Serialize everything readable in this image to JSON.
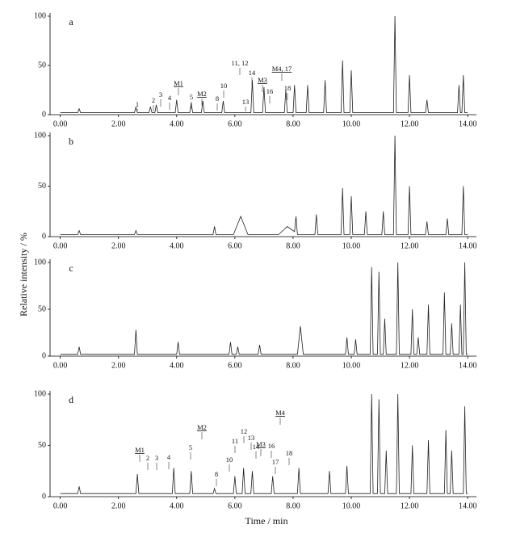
{
  "y_label": "Relative intensity / %",
  "x_label": "Time / min",
  "chart_data": [
    {
      "type": "line",
      "label": "a",
      "x": [
        0,
        0.6,
        0.65,
        0.7,
        2.55,
        2.6,
        2.65,
        3.05,
        3.1,
        3.15,
        3.25,
        3.3,
        3.35,
        3.95,
        4,
        4.05,
        4.45,
        4.5,
        4.55,
        4.85,
        4.9,
        4.95,
        5.55,
        5.6,
        5.65,
        6.55,
        6.6,
        6.65,
        6.95,
        7,
        7.05,
        7.7,
        7.75,
        7.8,
        8,
        8.05,
        8.1,
        8.45,
        8.5,
        8.55,
        9.05,
        9.1,
        9.15,
        9.65,
        9.7,
        9.75,
        9.95,
        10,
        10.05,
        11.45,
        11.5,
        11.55,
        11.95,
        12,
        12.05,
        12.55,
        12.6,
        12.65,
        13.65,
        13.7,
        13.75,
        13.8,
        13.85,
        13.9,
        14
      ],
      "values": [
        2,
        2,
        6,
        2,
        2,
        8,
        2,
        2,
        8,
        2,
        2,
        10,
        2,
        2,
        15,
        2,
        2,
        12,
        2,
        2,
        14,
        2,
        2,
        14,
        2,
        2,
        35,
        2,
        2,
        28,
        2,
        2,
        25,
        2,
        2,
        30,
        2,
        2,
        30,
        2,
        2,
        35,
        2,
        2,
        55,
        2,
        2,
        45,
        2,
        2,
        100,
        2,
        2,
        40,
        2,
        2,
        15,
        2,
        2,
        30,
        2,
        2,
        40,
        2,
        2
      ],
      "xlim": [
        -0.35,
        14.3
      ],
      "ylim": [
        0,
        100
      ],
      "yticks": [
        0,
        50,
        100
      ],
      "xticks": [
        {
          "value": 0,
          "label": "0.00"
        },
        {
          "value": 2,
          "label": "2.00"
        },
        {
          "value": 4,
          "label": "4.00"
        },
        {
          "value": 6,
          "label": "6.00"
        },
        {
          "value": 8,
          "label": "8.00"
        },
        {
          "value": 10,
          "label": "10.00"
        },
        {
          "value": 12,
          "label": "12.00"
        },
        {
          "value": 14,
          "label": "14.00"
        }
      ],
      "annotations": [
        "1",
        "2",
        "3",
        "4",
        "M1",
        "5",
        "M2",
        "8",
        "10",
        "11, 12",
        "13",
        "14",
        "M3",
        "16",
        "M4, 17",
        "18"
      ]
    },
    {
      "type": "line",
      "label": "b",
      "x": [
        0,
        0.6,
        0.65,
        0.7,
        2.55,
        2.6,
        2.65,
        5.25,
        5.3,
        5.35,
        5.95,
        6.2,
        6.45,
        7.5,
        7.8,
        8.05,
        8.1,
        8.15,
        8.75,
        8.8,
        8.85,
        9.65,
        9.7,
        9.75,
        9.95,
        10,
        10.05,
        10.45,
        10.5,
        10.55,
        11.05,
        11.1,
        11.15,
        11.45,
        11.5,
        11.55,
        11.95,
        12,
        12.05,
        12.55,
        12.6,
        12.65,
        13.25,
        13.3,
        13.35,
        13.8,
        13.85,
        13.9,
        14
      ],
      "values": [
        2,
        2,
        6,
        2,
        2,
        6,
        2,
        2,
        10,
        2,
        2,
        20,
        2,
        2,
        10,
        5,
        20,
        2,
        2,
        22,
        2,
        2,
        48,
        2,
        2,
        40,
        2,
        2,
        25,
        2,
        2,
        25,
        2,
        2,
        100,
        2,
        2,
        50,
        2,
        2,
        15,
        2,
        2,
        18,
        2,
        2,
        50,
        2,
        2
      ],
      "xlim": [
        -0.35,
        14.3
      ],
      "ylim": [
        0,
        100
      ],
      "yticks": [
        0,
        50,
        100
      ],
      "xticks": [
        {
          "value": 0,
          "label": "0.00"
        },
        {
          "value": 2,
          "label": "2.00"
        },
        {
          "value": 4,
          "label": "4.00"
        },
        {
          "value": 6,
          "label": "6.00"
        },
        {
          "value": 8,
          "label": "8.00"
        },
        {
          "value": 10,
          "label": "10.00"
        },
        {
          "value": 12,
          "label": "12.00"
        },
        {
          "value": 14,
          "label": "14.00"
        }
      ],
      "annotations": []
    },
    {
      "type": "line",
      "label": "c",
      "x": [
        0,
        0.6,
        0.65,
        0.7,
        2.55,
        2.6,
        2.65,
        4,
        4.05,
        4.1,
        5.8,
        5.85,
        5.9,
        6.05,
        6.1,
        6.15,
        6.8,
        6.85,
        6.9,
        8.15,
        8.25,
        8.35,
        9.8,
        9.85,
        9.9,
        10.1,
        10.15,
        10.2,
        10.65,
        10.7,
        10.75,
        10.9,
        10.95,
        11,
        11.1,
        11.15,
        11.2,
        11.55,
        11.6,
        11.65,
        12.05,
        12.1,
        12.15,
        12.25,
        12.3,
        12.35,
        12.6,
        12.65,
        12.7,
        13.15,
        13.2,
        13.25,
        13.4,
        13.45,
        13.5,
        13.7,
        13.75,
        13.8,
        13.85,
        13.9,
        13.95,
        14
      ],
      "values": [
        2,
        2,
        10,
        2,
        2,
        28,
        2,
        2,
        15,
        2,
        2,
        15,
        2,
        2,
        10,
        2,
        2,
        12,
        2,
        2,
        32,
        2,
        2,
        20,
        2,
        2,
        18,
        2,
        2,
        95,
        2,
        2,
        90,
        2,
        2,
        40,
        2,
        2,
        100,
        2,
        2,
        50,
        2,
        2,
        20,
        2,
        2,
        55,
        2,
        2,
        68,
        2,
        2,
        35,
        2,
        2,
        55,
        2,
        2,
        100,
        2,
        2
      ],
      "xlim": [
        -0.35,
        14.3
      ],
      "ylim": [
        0,
        100
      ],
      "yticks": [
        0,
        50,
        100
      ],
      "xticks": [
        {
          "value": 0,
          "label": "0.00"
        },
        {
          "value": 2,
          "label": "2.00"
        },
        {
          "value": 4,
          "label": "4.00"
        },
        {
          "value": 6,
          "label": "6.00"
        },
        {
          "value": 8,
          "label": "8.00"
        },
        {
          "value": 10,
          "label": "10.00"
        },
        {
          "value": 12,
          "label": "12.00"
        },
        {
          "value": 14,
          "label": "14.00"
        }
      ],
      "annotations": []
    },
    {
      "type": "line",
      "label": "d",
      "x": [
        0,
        0.6,
        0.65,
        0.7,
        2.6,
        2.65,
        2.7,
        3.85,
        3.9,
        3.95,
        4.45,
        4.5,
        4.55,
        5.25,
        5.3,
        5.35,
        5.95,
        6,
        6.05,
        6.25,
        6.3,
        6.35,
        6.55,
        6.6,
        6.65,
        7.25,
        7.3,
        7.35,
        8.15,
        8.2,
        8.25,
        9.2,
        9.25,
        9.3,
        9.8,
        9.85,
        9.9,
        10.65,
        10.7,
        10.75,
        10.9,
        10.95,
        11,
        11.15,
        11.2,
        11.25,
        11.55,
        11.6,
        11.65,
        12.05,
        12.1,
        12.15,
        12.6,
        12.65,
        12.7,
        13.2,
        13.25,
        13.3,
        13.4,
        13.45,
        13.5,
        13.85,
        13.9,
        13.95,
        14
      ],
      "values": [
        3,
        3,
        10,
        3,
        3,
        22,
        3,
        3,
        28,
        3,
        3,
        25,
        3,
        3,
        8,
        3,
        3,
        20,
        3,
        3,
        28,
        3,
        3,
        25,
        3,
        3,
        20,
        3,
        3,
        28,
        3,
        3,
        25,
        3,
        3,
        30,
        3,
        3,
        100,
        3,
        3,
        95,
        3,
        3,
        45,
        3,
        3,
        100,
        3,
        3,
        50,
        3,
        3,
        55,
        3,
        3,
        65,
        3,
        3,
        45,
        3,
        3,
        88,
        3,
        3
      ],
      "xlim": [
        -0.35,
        14.3
      ],
      "ylim": [
        0,
        100
      ],
      "yticks": [
        0,
        50,
        100
      ],
      "xticks": [
        {
          "value": 0,
          "label": "0.00"
        },
        {
          "value": 2,
          "label": "2.00"
        },
        {
          "value": 4,
          "label": "4.00"
        },
        {
          "value": 6,
          "label": "6.00"
        },
        {
          "value": 8,
          "label": "8.00"
        },
        {
          "value": 10,
          "label": "10.00"
        },
        {
          "value": 12,
          "label": "12.00"
        },
        {
          "value": 14,
          "label": "14.00"
        }
      ],
      "annotations": [
        "M1",
        "2",
        "3",
        "4",
        "5",
        "M2",
        "8",
        "10",
        "11",
        "12",
        "13",
        "14",
        "M3",
        "16",
        "17",
        "18",
        "M4"
      ]
    }
  ]
}
